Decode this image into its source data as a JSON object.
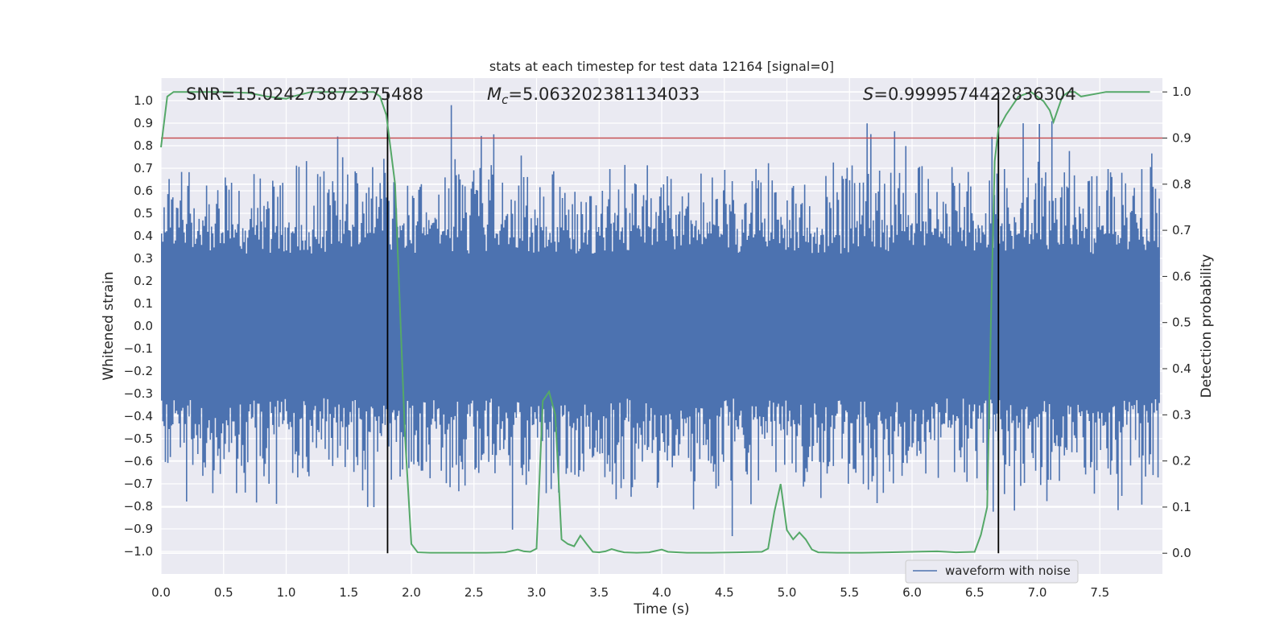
{
  "chart_data": {
    "type": "line",
    "title": "stats at each timestep for test data 12164 [signal=0]",
    "xlabel": "Time (s)",
    "ylabel": "Whitened strain",
    "y2label": "Detection probability",
    "xlim": [
      0.0,
      8.0
    ],
    "ylim": [
      -1.1,
      1.1
    ],
    "y2lim": [
      -0.045,
      1.03
    ],
    "xticks": [
      "0.0",
      "0.5",
      "1.0",
      "1.5",
      "2.0",
      "2.5",
      "3.0",
      "3.5",
      "4.0",
      "4.5",
      "5.0",
      "5.5",
      "6.0",
      "6.5",
      "7.0",
      "7.5"
    ],
    "xtick_values": [
      0,
      0.5,
      1,
      1.5,
      2,
      2.5,
      3,
      3.5,
      4,
      4.5,
      5,
      5.5,
      6,
      6.5,
      7,
      7.5
    ],
    "yticks": [
      "1.0",
      "0.9",
      "0.8",
      "0.7",
      "0.6",
      "0.5",
      "0.4",
      "0.3",
      "0.2",
      "0.1",
      "0.0",
      "−0.1",
      "−0.2",
      "−0.3",
      "−0.4",
      "−0.5",
      "−0.6",
      "−0.7",
      "−0.8",
      "−0.9",
      "−1.0"
    ],
    "ytick_values": [
      1,
      0.9,
      0.8,
      0.7,
      0.6,
      0.5,
      0.4,
      0.3,
      0.2,
      0.1,
      0,
      -0.1,
      -0.2,
      -0.3,
      -0.4,
      -0.5,
      -0.6,
      -0.7,
      -0.8,
      -0.9,
      -1
    ],
    "y2ticks": [
      "1.0",
      "0.9",
      "0.8",
      "0.7",
      "0.6",
      "0.5",
      "0.4",
      "0.3",
      "0.2",
      "0.1",
      "0.0"
    ],
    "y2tick_values": [
      1,
      0.9,
      0.8,
      0.7,
      0.6,
      0.5,
      0.4,
      0.3,
      0.2,
      0.1,
      0
    ],
    "annotations": {
      "snr": "SNR=15.024273872375488",
      "mc_symbol": "M",
      "mc_sub": "c",
      "mc_value": "=5.063202381134033",
      "s_symbol": "S",
      "s_value": "=0.9999574422836304"
    },
    "threshold": {
      "y2": 0.9,
      "color": "#c44e52"
    },
    "vlines": {
      "x": [
        1.81,
        6.69
      ],
      "y2range": [
        0.0,
        1.0
      ],
      "color": "#000000"
    },
    "waveform": {
      "name": "waveform with noise",
      "color": "#4c72b0",
      "n_samples": 800,
      "base_amplitude": 0.32,
      "max_abs": 0.98
    },
    "probability": {
      "name": "detection probability",
      "color": "#55a868",
      "x": [
        0.0,
        0.05,
        0.1,
        0.15,
        0.3,
        0.5,
        0.7,
        0.85,
        1.0,
        1.05,
        1.2,
        1.4,
        1.6,
        1.7,
        1.75,
        1.8,
        1.87,
        1.95,
        2.0,
        2.05,
        2.15,
        2.3,
        2.45,
        2.6,
        2.75,
        2.85,
        2.9,
        2.95,
        3.0,
        3.05,
        3.1,
        3.15,
        3.2,
        3.25,
        3.3,
        3.35,
        3.4,
        3.45,
        3.5,
        3.55,
        3.6,
        3.65,
        3.7,
        3.8,
        3.9,
        4.0,
        4.05,
        4.2,
        4.4,
        4.6,
        4.8,
        4.85,
        4.9,
        4.95,
        5.0,
        5.05,
        5.1,
        5.15,
        5.2,
        5.25,
        5.4,
        5.6,
        5.8,
        6.0,
        6.2,
        6.35,
        6.5,
        6.55,
        6.6,
        6.63,
        6.66,
        6.69,
        6.75,
        6.85,
        6.95,
        7.05,
        7.1,
        7.13,
        7.2,
        7.25,
        7.3,
        7.35,
        7.45,
        7.55,
        7.7,
        7.9
      ],
      "y": [
        0.88,
        0.99,
        1.0,
        1.0,
        1.0,
        1.0,
        0.998,
        0.99,
        0.985,
        0.99,
        1.0,
        1.0,
        1.0,
        1.0,
        0.99,
        0.95,
        0.8,
        0.25,
        0.02,
        0.002,
        0.001,
        0.001,
        0.001,
        0.001,
        0.002,
        0.008,
        0.004,
        0.003,
        0.01,
        0.33,
        0.35,
        0.3,
        0.03,
        0.02,
        0.015,
        0.038,
        0.02,
        0.003,
        0.002,
        0.004,
        0.009,
        0.005,
        0.002,
        0.001,
        0.002,
        0.008,
        0.003,
        0.001,
        0.001,
        0.002,
        0.003,
        0.01,
        0.09,
        0.15,
        0.05,
        0.03,
        0.045,
        0.03,
        0.008,
        0.002,
        0.001,
        0.001,
        0.002,
        0.003,
        0.004,
        0.002,
        0.003,
        0.04,
        0.1,
        0.5,
        0.85,
        0.92,
        0.95,
        0.99,
        1.0,
        0.98,
        0.96,
        0.935,
        0.99,
        1.0,
        1.0,
        0.99,
        0.995,
        1.0,
        1.0,
        1.0
      ]
    },
    "legend": {
      "position": "bottom-right",
      "label": "waveform with noise"
    },
    "grid": true
  }
}
